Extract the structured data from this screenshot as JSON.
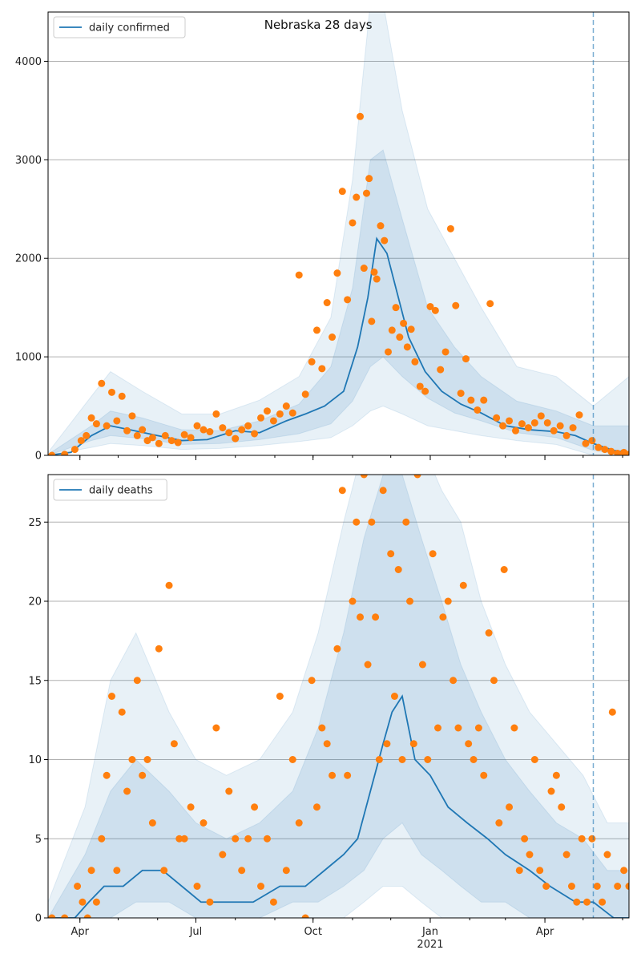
{
  "chart_data": [
    {
      "type": "line",
      "title": "Nebraska 28 days",
      "ylim": [
        0,
        4500
      ],
      "yticks": [
        0,
        1000,
        2000,
        3000,
        4000
      ],
      "xticks": [
        {
          "date": "2020-04-01",
          "label": "Apr"
        },
        {
          "date": "2020-07-01",
          "label": "Jul"
        },
        {
          "date": "2020-10-01",
          "label": "Oct"
        },
        {
          "date": "2021-01-01",
          "label": "Jan",
          "sublabel": "2021"
        },
        {
          "date": "2021-04-01",
          "label": "Apr"
        }
      ],
      "x_range": [
        "2020-03-07",
        "2021-06-06"
      ],
      "vline_date": "2021-05-09",
      "grid": "horizontal",
      "legend": {
        "label": "daily confirmed",
        "placement": "top-left"
      },
      "series": [
        {
          "name": "daily confirmed",
          "dates": [
            "2020-03-07",
            "2020-03-25",
            "2020-04-10",
            "2020-04-25",
            "2020-05-10",
            "2020-06-01",
            "2020-06-20",
            "2020-07-10",
            "2020-08-01",
            "2020-08-20",
            "2020-09-10",
            "2020-09-25",
            "2020-10-10",
            "2020-10-25",
            "2020-11-05",
            "2020-11-13",
            "2020-11-20",
            "2020-11-28",
            "2020-12-05",
            "2020-12-15",
            "2020-12-28",
            "2021-01-10",
            "2021-01-25",
            "2021-02-10",
            "2021-03-01",
            "2021-03-20",
            "2021-04-10",
            "2021-04-25",
            "2021-05-09",
            "2021-05-25",
            "2021-06-06"
          ],
          "values": [
            0,
            30,
            200,
            300,
            260,
            200,
            150,
            160,
            250,
            230,
            350,
            420,
            500,
            650,
            1100,
            1600,
            2200,
            2050,
            1700,
            1200,
            850,
            650,
            520,
            430,
            300,
            260,
            240,
            200,
            120,
            50,
            30
          ]
        },
        {
          "name": "band_outer",
          "dates": [
            "2020-03-07",
            "2020-04-10",
            "2020-04-25",
            "2020-05-20",
            "2020-06-20",
            "2020-07-20",
            "2020-08-20",
            "2020-09-20",
            "2020-10-15",
            "2020-11-01",
            "2020-11-15",
            "2020-11-25",
            "2020-12-10",
            "2020-12-30",
            "2021-01-20",
            "2021-02-10",
            "2021-03-10",
            "2021-04-10",
            "2021-05-09",
            "2021-06-06"
          ],
          "lower": [
            0,
            80,
            120,
            100,
            60,
            70,
            100,
            140,
            180,
            300,
            450,
            500,
            420,
            300,
            250,
            200,
            150,
            110,
            0,
            0
          ],
          "upper": [
            30,
            600,
            850,
            650,
            420,
            420,
            560,
            800,
            1400,
            2800,
            4600,
            4600,
            3500,
            2500,
            2000,
            1500,
            900,
            800,
            500,
            800
          ]
        },
        {
          "name": "band_inner",
          "dates": [
            "2020-03-07",
            "2020-04-10",
            "2020-04-25",
            "2020-05-20",
            "2020-06-20",
            "2020-07-20",
            "2020-08-20",
            "2020-09-20",
            "2020-10-15",
            "2020-11-01",
            "2020-11-15",
            "2020-11-25",
            "2020-12-10",
            "2020-12-30",
            "2021-01-20",
            "2021-02-10",
            "2021-03-10",
            "2021-04-10",
            "2021-05-09",
            "2021-06-06"
          ],
          "lower": [
            0,
            150,
            200,
            170,
            110,
            120,
            160,
            220,
            320,
            550,
            900,
            1000,
            800,
            580,
            430,
            350,
            230,
            180,
            50,
            0
          ],
          "upper": [
            10,
            300,
            450,
            380,
            260,
            250,
            350,
            520,
            900,
            1700,
            3000,
            3100,
            2400,
            1500,
            1100,
            800,
            550,
            450,
            300,
            300
          ]
        }
      ],
      "scatter": {
        "dates": [
          "2020-03-10",
          "2020-03-20",
          "2020-03-28",
          "2020-04-02",
          "2020-04-06",
          "2020-04-10",
          "2020-04-14",
          "2020-04-18",
          "2020-04-22",
          "2020-04-26",
          "2020-04-30",
          "2020-05-04",
          "2020-05-08",
          "2020-05-12",
          "2020-05-16",
          "2020-05-20",
          "2020-05-24",
          "2020-05-28",
          "2020-06-02",
          "2020-06-07",
          "2020-06-12",
          "2020-06-17",
          "2020-06-22",
          "2020-06-27",
          "2020-07-02",
          "2020-07-07",
          "2020-07-12",
          "2020-07-17",
          "2020-07-22",
          "2020-07-27",
          "2020-08-01",
          "2020-08-06",
          "2020-08-11",
          "2020-08-16",
          "2020-08-21",
          "2020-08-26",
          "2020-08-31",
          "2020-09-05",
          "2020-09-10",
          "2020-09-15",
          "2020-09-20",
          "2020-09-25",
          "2020-09-30",
          "2020-10-04",
          "2020-10-08",
          "2020-10-12",
          "2020-10-16",
          "2020-10-20",
          "2020-10-24",
          "2020-10-28",
          "2020-11-01",
          "2020-11-04",
          "2020-11-07",
          "2020-11-10",
          "2020-11-12",
          "2020-11-14",
          "2020-11-16",
          "2020-11-18",
          "2020-11-20",
          "2020-11-23",
          "2020-11-26",
          "2020-11-29",
          "2020-12-02",
          "2020-12-05",
          "2020-12-08",
          "2020-12-11",
          "2020-12-14",
          "2020-12-17",
          "2020-12-20",
          "2020-12-24",
          "2020-12-28",
          "2021-01-01",
          "2021-01-05",
          "2021-01-09",
          "2021-01-13",
          "2021-01-17",
          "2021-01-21",
          "2021-01-25",
          "2021-01-29",
          "2021-02-02",
          "2021-02-07",
          "2021-02-12",
          "2021-02-17",
          "2021-02-22",
          "2021-02-27",
          "2021-03-04",
          "2021-03-09",
          "2021-03-14",
          "2021-03-19",
          "2021-03-24",
          "2021-03-29",
          "2021-04-03",
          "2021-04-08",
          "2021-04-13",
          "2021-04-18",
          "2021-04-23",
          "2021-04-28",
          "2021-05-03",
          "2021-05-08",
          "2021-05-13",
          "2021-05-18",
          "2021-05-23",
          "2021-05-28",
          "2021-06-02",
          "2021-06-06"
        ],
        "values": [
          0,
          10,
          60,
          150,
          200,
          380,
          320,
          730,
          300,
          640,
          350,
          600,
          250,
          400,
          200,
          260,
          150,
          180,
          120,
          200,
          150,
          130,
          210,
          180,
          300,
          260,
          240,
          420,
          280,
          230,
          170,
          260,
          300,
          220,
          380,
          450,
          350,
          420,
          500,
          430,
          1830,
          620,
          950,
          1270,
          880,
          1550,
          1200,
          1850,
          2680,
          1580,
          2360,
          2620,
          3440,
          1900,
          2660,
          2810,
          1360,
          1860,
          1790,
          2330,
          2180,
          1050,
          1270,
          1500,
          1200,
          1340,
          1100,
          1280,
          950,
          700,
          650,
          1510,
          1470,
          870,
          1050,
          2300,
          1520,
          630,
          980,
          560,
          460,
          560,
          1540,
          380,
          300,
          350,
          250,
          320,
          280,
          330,
          400,
          330,
          250,
          300,
          200,
          280,
          410,
          120,
          150,
          80,
          60,
          40,
          20,
          30,
          10
        ]
      }
    },
    {
      "type": "line",
      "title": "",
      "ylim": [
        0,
        28
      ],
      "yticks": [
        0,
        5,
        10,
        15,
        20,
        25
      ],
      "xticks": [
        {
          "date": "2020-04-01",
          "label": "Apr"
        },
        {
          "date": "2020-07-01",
          "label": "Jul"
        },
        {
          "date": "2020-10-01",
          "label": "Oct"
        },
        {
          "date": "2021-01-01",
          "label": "Jan",
          "sublabel": "2021"
        },
        {
          "date": "2021-04-01",
          "label": "Apr"
        }
      ],
      "x_range": [
        "2020-03-07",
        "2021-06-06"
      ],
      "vline_date": "2021-05-09",
      "grid": "horizontal",
      "legend": {
        "label": "daily deaths",
        "placement": "top-left"
      },
      "series": [
        {
          "name": "daily deaths",
          "dates": [
            "2020-03-07",
            "2020-03-28",
            "2020-04-08",
            "2020-04-20",
            "2020-05-05",
            "2020-05-20",
            "2020-06-05",
            "2020-06-20",
            "2020-07-05",
            "2020-07-25",
            "2020-08-15",
            "2020-09-05",
            "2020-09-25",
            "2020-10-10",
            "2020-10-25",
            "2020-11-05",
            "2020-11-15",
            "2020-11-25",
            "2020-12-02",
            "2020-12-10",
            "2020-12-20",
            "2021-01-01",
            "2021-01-15",
            "2021-01-30",
            "2021-02-15",
            "2021-03-01",
            "2021-03-20",
            "2021-04-05",
            "2021-04-25",
            "2021-05-09",
            "2021-05-25",
            "2021-06-06"
          ],
          "values": [
            0,
            0,
            1,
            2,
            2,
            3,
            3,
            2,
            1,
            1,
            1,
            2,
            2,
            3,
            4,
            5,
            8,
            11,
            13,
            14,
            10,
            9,
            7,
            6,
            5,
            4,
            3,
            2,
            1,
            1,
            0,
            0
          ]
        },
        {
          "name": "band_outer",
          "dates": [
            "2020-03-07",
            "2020-04-05",
            "2020-04-25",
            "2020-05-15",
            "2020-06-10",
            "2020-07-01",
            "2020-07-25",
            "2020-08-20",
            "2020-09-15",
            "2020-10-05",
            "2020-10-25",
            "2020-11-10",
            "2020-11-25",
            "2020-12-10",
            "2020-12-25",
            "2021-01-10",
            "2021-01-25",
            "2021-02-10",
            "2021-03-01",
            "2021-03-20",
            "2021-04-10",
            "2021-05-01",
            "2021-05-20",
            "2021-06-06"
          ],
          "lower": [
            0,
            0,
            0,
            0,
            0,
            0,
            0,
            0,
            0,
            0,
            0,
            1,
            2,
            2,
            1,
            0,
            0,
            0,
            0,
            0,
            0,
            0,
            0,
            0
          ],
          "upper": [
            1,
            7,
            15,
            18,
            13,
            10,
            9,
            10,
            13,
            18,
            25,
            30,
            32,
            32,
            30,
            27,
            25,
            20,
            16,
            13,
            11,
            9,
            6,
            6
          ]
        },
        {
          "name": "band_inner",
          "dates": [
            "2020-03-07",
            "2020-04-05",
            "2020-04-25",
            "2020-05-15",
            "2020-06-10",
            "2020-07-01",
            "2020-07-25",
            "2020-08-20",
            "2020-09-15",
            "2020-10-05",
            "2020-10-25",
            "2020-11-10",
            "2020-11-25",
            "2020-12-10",
            "2020-12-25",
            "2021-01-10",
            "2021-01-25",
            "2021-02-10",
            "2021-03-01",
            "2021-03-20",
            "2021-04-10",
            "2021-05-01",
            "2021-05-20",
            "2021-06-06"
          ],
          "lower": [
            0,
            0,
            0,
            1,
            1,
            0,
            0,
            0,
            1,
            1,
            2,
            3,
            5,
            6,
            4,
            3,
            2,
            1,
            1,
            0,
            0,
            0,
            0,
            0
          ],
          "upper": [
            0,
            4,
            8,
            10,
            8,
            6,
            5,
            6,
            8,
            12,
            18,
            24,
            28,
            28,
            24,
            20,
            16,
            13,
            10,
            8,
            6,
            5,
            3,
            3
          ]
        }
      ],
      "scatter": {
        "dates": [
          "2020-03-10",
          "2020-03-20",
          "2020-03-30",
          "2020-04-03",
          "2020-04-07",
          "2020-04-10",
          "2020-04-14",
          "2020-04-18",
          "2020-04-22",
          "2020-04-26",
          "2020-04-30",
          "2020-05-04",
          "2020-05-08",
          "2020-05-12",
          "2020-05-16",
          "2020-05-20",
          "2020-05-24",
          "2020-05-28",
          "2020-06-02",
          "2020-06-06",
          "2020-06-10",
          "2020-06-14",
          "2020-06-18",
          "2020-06-22",
          "2020-06-27",
          "2020-07-02",
          "2020-07-07",
          "2020-07-12",
          "2020-07-17",
          "2020-07-22",
          "2020-07-27",
          "2020-08-01",
          "2020-08-06",
          "2020-08-11",
          "2020-08-16",
          "2020-08-21",
          "2020-08-26",
          "2020-08-31",
          "2020-09-05",
          "2020-09-10",
          "2020-09-15",
          "2020-09-20",
          "2020-09-25",
          "2020-09-30",
          "2020-10-04",
          "2020-10-08",
          "2020-10-12",
          "2020-10-16",
          "2020-10-20",
          "2020-10-24",
          "2020-10-28",
          "2020-11-01",
          "2020-11-04",
          "2020-11-07",
          "2020-11-10",
          "2020-11-13",
          "2020-11-16",
          "2020-11-19",
          "2020-11-22",
          "2020-11-25",
          "2020-11-28",
          "2020-12-01",
          "2020-12-04",
          "2020-12-07",
          "2020-12-10",
          "2020-12-13",
          "2020-12-16",
          "2020-12-19",
          "2020-12-22",
          "2020-12-26",
          "2020-12-30",
          "2021-01-03",
          "2021-01-07",
          "2021-01-11",
          "2021-01-15",
          "2021-01-19",
          "2021-01-23",
          "2021-01-27",
          "2021-01-31",
          "2021-02-04",
          "2021-02-08",
          "2021-02-12",
          "2021-02-16",
          "2021-02-20",
          "2021-02-24",
          "2021-02-28",
          "2021-03-04",
          "2021-03-08",
          "2021-03-12",
          "2021-03-16",
          "2021-03-20",
          "2021-03-24",
          "2021-03-28",
          "2021-04-02",
          "2021-04-06",
          "2021-04-10",
          "2021-04-14",
          "2021-04-18",
          "2021-04-22",
          "2021-04-26",
          "2021-04-30",
          "2021-05-04",
          "2021-05-08",
          "2021-05-12",
          "2021-05-16",
          "2021-05-20",
          "2021-05-24",
          "2021-05-28",
          "2021-06-02",
          "2021-06-06"
        ],
        "values": [
          0,
          0,
          2,
          1,
          0,
          3,
          1,
          5,
          9,
          14,
          3,
          13,
          8,
          10,
          15,
          9,
          10,
          6,
          17,
          3,
          21,
          11,
          5,
          5,
          7,
          2,
          6,
          1,
          12,
          4,
          8,
          5,
          3,
          5,
          7,
          2,
          5,
          1,
          14,
          3,
          10,
          6,
          0,
          15,
          7,
          12,
          11,
          9,
          17,
          27,
          9,
          20,
          25,
          19,
          28,
          16,
          25,
          19,
          10,
          27,
          11,
          23,
          14,
          22,
          10,
          25,
          20,
          11,
          28,
          16,
          10,
          23,
          12,
          19,
          20,
          15,
          12,
          21,
          11,
          10,
          12,
          9,
          18,
          15,
          6,
          22,
          7,
          12,
          3,
          5,
          4,
          10,
          3,
          2,
          8,
          9,
          7,
          4,
          2,
          1,
          5,
          1,
          5,
          2,
          1,
          4,
          13,
          2,
          3,
          2
        ]
      }
    }
  ]
}
